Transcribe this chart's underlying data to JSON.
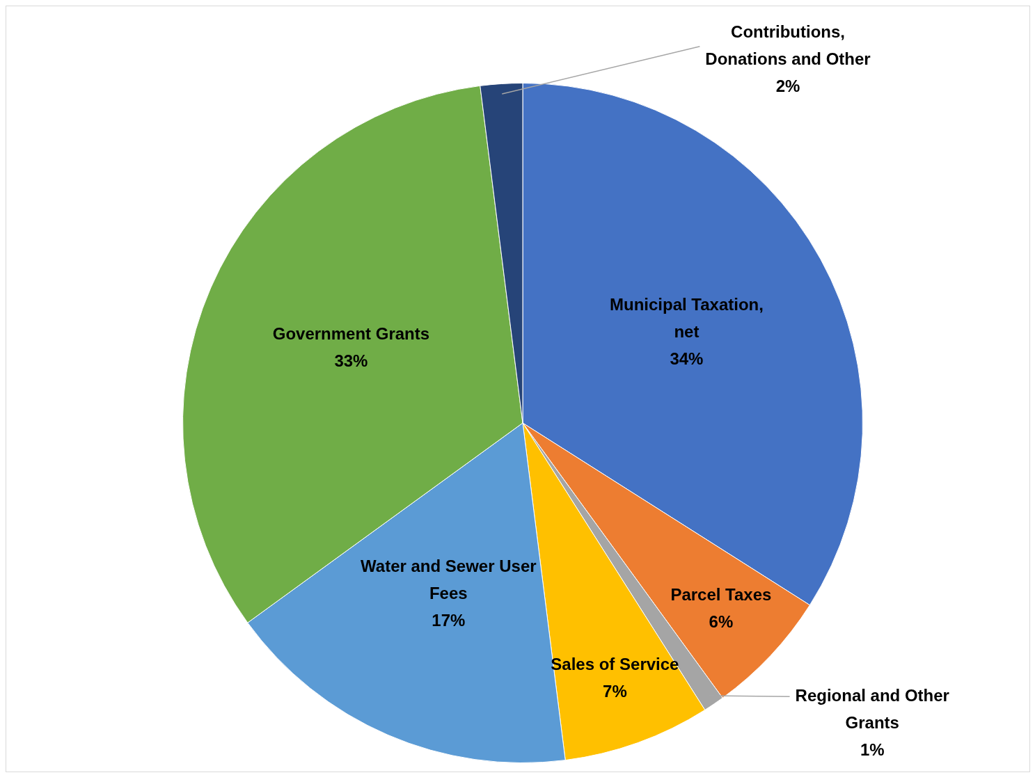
{
  "chart_data": {
    "type": "pie",
    "categories": [
      "Municipal Taxation, net",
      "Parcel Taxes",
      "Regional and Other Grants",
      "Sales of Service",
      "Water and Sewer User Fees",
      "Government Grants",
      "Contributions, Donations and Other"
    ],
    "values": [
      34,
      6,
      1,
      7,
      17,
      33,
      2
    ],
    "value_labels": [
      "34%",
      "6%",
      "1%",
      "7%",
      "17%",
      "33%",
      "2%"
    ],
    "colors": [
      "#4472c4",
      "#ed7d31",
      "#a5a5a5",
      "#ffc000",
      "#5b9bd5",
      "#70ad47",
      "#264478"
    ],
    "legend": false
  }
}
